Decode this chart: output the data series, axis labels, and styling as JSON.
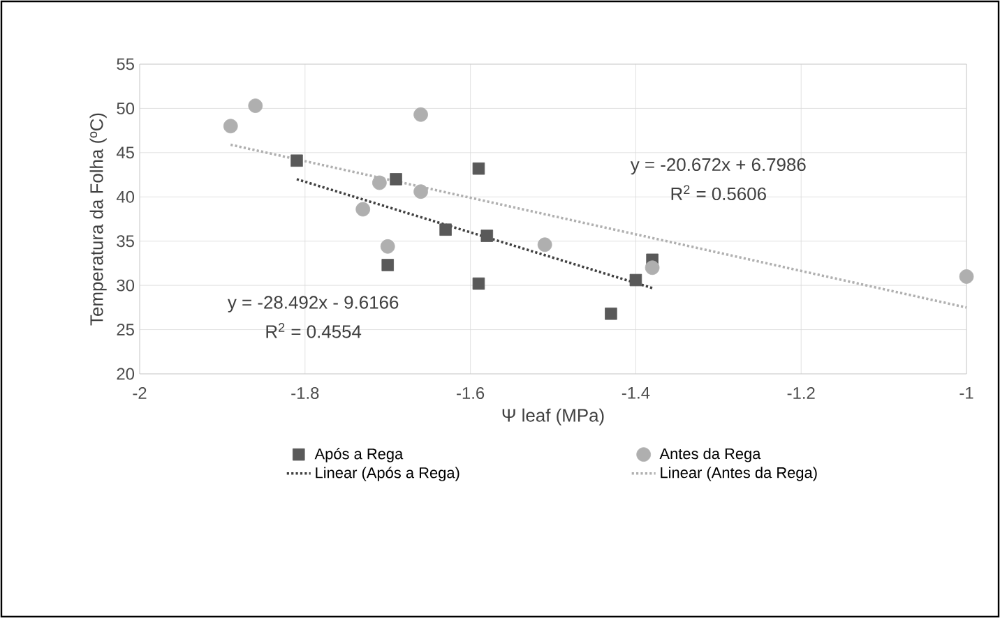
{
  "chart_data": {
    "type": "scatter",
    "xlabel": "Ψ leaf (MPa)",
    "ylabel": "Temperatura da Folha (ºC)",
    "series": [
      {
        "name": "Após a Rega",
        "marker": "square",
        "color": "#595959",
        "x": [
          -1.81,
          -1.69,
          -1.7,
          -1.63,
          -1.59,
          -1.59,
          -1.58,
          -1.43,
          -1.4,
          -1.38
        ],
        "values": [
          44.1,
          42.0,
          32.3,
          36.3,
          43.2,
          30.2,
          35.6,
          26.8,
          30.6,
          32.9
        ]
      },
      {
        "name": "Antes da Rega",
        "marker": "circle",
        "color": "#afafaf",
        "x": [
          -1.89,
          -1.86,
          -1.71,
          -1.73,
          -1.7,
          -1.66,
          -1.66,
          -1.51,
          -1.38,
          -1.0
        ],
        "values": [
          48.0,
          50.3,
          41.6,
          38.6,
          34.4,
          49.3,
          40.6,
          34.6,
          32.0,
          31.0
        ]
      },
      {
        "name": "Linear (Após a Rega)",
        "type": "line",
        "line_style": "dotted",
        "marker": "none",
        "color": "#404040",
        "x": [
          -1.81,
          -1.38
        ],
        "values": [
          42.0,
          29.7
        ]
      },
      {
        "name": "Linear (Antes da Rega)",
        "type": "line",
        "line_style": "dotted",
        "marker": "none",
        "color": "#b0b0b0",
        "x": [
          -1.89,
          -1.0
        ],
        "values": [
          45.9,
          27.5
        ]
      }
    ],
    "xlim": [
      -2,
      -1
    ],
    "xticks": [
      -2,
      -1.8,
      -1.6,
      -1.4,
      -1.2,
      -1
    ],
    "ylim": [
      20,
      55
    ],
    "yticks": [
      20,
      25,
      30,
      35,
      40,
      45,
      50,
      55
    ],
    "grid": true,
    "legend": "bottom",
    "annotations": [
      "y = -20.672x + 6.7986",
      "R$^{2}$ = 0.5606",
      "y = -28.492x - 9.6166",
      "R$^{2}$ = 0.4554"
    ]
  }
}
